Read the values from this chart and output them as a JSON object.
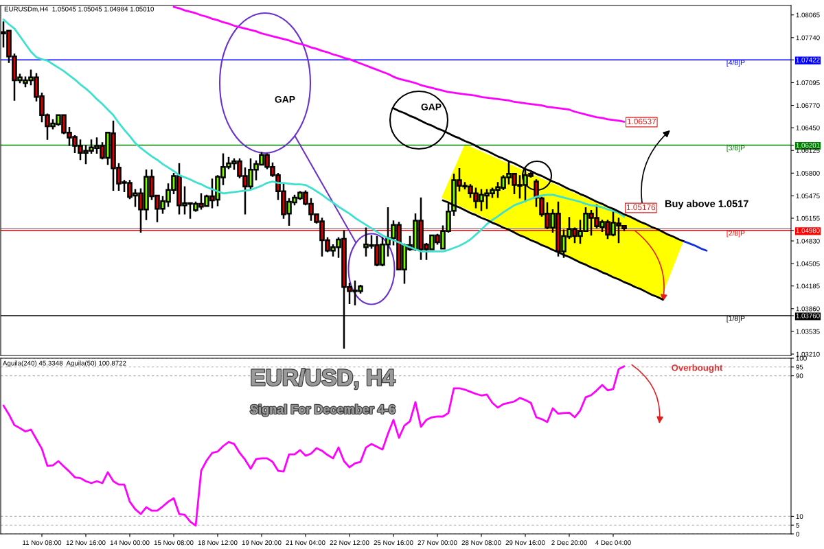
{
  "chart_data": [
    {
      "type": "candlestick",
      "categories": [
        null,
        null,
        null,
        null,
        null,
        null,
        null,
        null,
        null,
        null,
        null,
        null,
        null,
        null,
        null,
        null,
        null,
        null,
        null,
        null,
        null,
        null,
        null,
        null,
        null,
        null,
        null,
        null,
        null,
        null,
        null,
        null,
        null,
        null,
        null,
        null,
        null,
        null,
        null,
        null,
        null,
        null,
        null,
        null,
        null,
        null,
        null,
        null,
        null,
        null,
        null,
        null,
        null,
        null,
        null,
        null,
        null,
        null,
        null,
        null,
        null,
        null,
        null,
        null,
        null,
        null,
        null,
        null,
        null,
        null,
        null,
        null,
        null,
        null,
        null,
        null,
        null,
        null,
        null,
        null,
        null,
        null,
        null,
        null,
        null,
        null,
        null,
        null,
        null,
        null,
        null,
        null,
        null,
        null,
        null,
        null,
        null,
        null,
        null,
        null,
        null,
        null,
        null,
        null,
        null,
        null,
        null,
        null,
        null,
        null,
        null,
        null,
        null,
        null,
        null,
        null,
        null,
        null,
        null,
        null,
        null,
        null,
        null,
        null,
        null,
        null,
        null,
        null,
        null
      ],
      "ohlc": [
        [
          1.078,
          1.0796,
          1.0761,
          1.0782
        ],
        [
          1.0784,
          1.0784,
          1.0739,
          1.0747
        ],
        [
          1.0747,
          1.075,
          1.0685,
          1.0713
        ],
        [
          1.0713,
          1.0721,
          1.071,
          1.0717
        ],
        [
          1.0709,
          1.0717,
          1.0704,
          1.0713
        ],
        [
          1.0713,
          1.0727,
          1.0707,
          1.0717
        ],
        [
          1.0717,
          1.0722,
          1.0684,
          1.0689
        ],
        [
          1.069,
          1.0694,
          1.0654,
          1.0663
        ],
        [
          1.0663,
          1.0664,
          1.0629,
          1.0647
        ],
        [
          1.0647,
          1.0656,
          1.0644,
          1.0651
        ],
        [
          1.065,
          1.0663,
          1.0649,
          1.0663
        ],
        [
          1.0663,
          1.0663,
          1.0637,
          1.0638
        ],
        [
          1.0638,
          1.0645,
          1.062,
          1.0631
        ],
        [
          1.0632,
          1.0633,
          1.061,
          1.0619
        ],
        [
          1.0619,
          1.0627,
          1.06,
          1.0609
        ],
        [
          1.0609,
          1.0619,
          1.0594,
          1.0612
        ],
        [
          1.0612,
          1.0627,
          1.0609,
          1.0617
        ],
        [
          1.0616,
          1.063,
          1.0609,
          1.0619
        ],
        [
          1.0619,
          1.0623,
          1.0601,
          1.0602
        ],
        [
          1.0602,
          1.0638,
          1.0593,
          1.0638
        ],
        [
          1.0637,
          1.0654,
          1.0556,
          1.0587
        ],
        [
          1.0588,
          1.0593,
          1.0556,
          1.0565
        ],
        [
          1.0567,
          1.0569,
          1.0554,
          1.0566
        ],
        [
          1.0566,
          1.0569,
          1.0544,
          1.0546
        ],
        [
          1.0548,
          1.0556,
          1.0533,
          1.0551
        ],
        [
          1.0551,
          1.0557,
          1.0496,
          1.0528
        ],
        [
          1.0528,
          1.0584,
          1.0514,
          1.0575
        ],
        [
          1.0575,
          1.0584,
          1.0543,
          1.0547
        ],
        [
          1.0548,
          1.0548,
          1.0511,
          1.0529
        ],
        [
          1.0529,
          1.0546,
          1.0523,
          1.054
        ],
        [
          1.0539,
          1.0564,
          1.0533,
          1.0556
        ],
        [
          1.0556,
          1.0579,
          1.0551,
          1.0576
        ],
        [
          1.0576,
          1.0593,
          1.0522,
          1.0534
        ],
        [
          1.0534,
          1.056,
          1.0522,
          1.0537
        ],
        [
          1.0537,
          1.0537,
          1.0516,
          1.0536
        ],
        [
          1.0527,
          1.0538,
          1.0526,
          1.0536
        ],
        [
          1.0536,
          1.055,
          1.0529,
          1.0532
        ],
        [
          1.0533,
          1.0548,
          1.0533,
          1.0547
        ],
        [
          1.0547,
          1.0571,
          1.0531,
          1.0541
        ],
        [
          1.0542,
          1.0576,
          1.0534,
          1.0575
        ],
        [
          1.0574,
          1.0607,
          1.0564,
          1.0589
        ],
        [
          1.0589,
          1.0602,
          1.0587,
          1.0594
        ],
        [
          1.0594,
          1.06,
          1.0586,
          1.0597
        ],
        [
          1.0597,
          1.06,
          1.0574,
          1.0576
        ],
        [
          1.0576,
          1.0587,
          1.0522,
          1.0561
        ],
        [
          1.0561,
          1.06,
          1.0558,
          1.0585
        ],
        [
          1.0585,
          1.0597,
          1.0571,
          1.0593
        ],
        [
          1.0592,
          1.0609,
          1.0592,
          1.0606
        ],
        [
          1.0606,
          1.0607,
          1.0587,
          1.0589
        ],
        [
          1.0589,
          1.0594,
          1.0576,
          1.0577
        ],
        [
          1.0577,
          1.0579,
          1.0543,
          1.0554
        ],
        [
          1.0554,
          1.0564,
          1.0516,
          1.0521
        ],
        [
          1.0522,
          1.0543,
          1.0506,
          1.0539
        ],
        [
          1.0538,
          1.0548,
          1.0535,
          1.0545
        ],
        [
          1.0544,
          1.0553,
          1.0543,
          1.0552
        ],
        [
          1.0552,
          1.0554,
          1.0535,
          1.0536
        ],
        [
          1.0536,
          1.0543,
          1.0513,
          1.0521
        ],
        [
          1.0521,
          1.0521,
          1.0509,
          1.051
        ],
        [
          1.0511,
          1.0515,
          1.0462,
          1.0484
        ],
        [
          1.0484,
          1.0487,
          1.0468,
          1.0469
        ],
        [
          1.0469,
          1.0477,
          1.0462,
          1.0474
        ],
        [
          1.0474,
          1.0487,
          1.046,
          1.0485
        ],
        [
          1.0486,
          1.0497,
          1.033,
          1.0417
        ],
        [
          1.0417,
          1.0422,
          1.0394,
          1.0411
        ],
        [
          1.0411,
          1.0425,
          1.0392,
          1.0412
        ],
        [
          1.0411,
          1.0419,
          1.0409,
          1.0418
        ],
        [
          1.0474,
          1.0501,
          1.0462,
          1.0478
        ],
        [
          1.0477,
          1.049,
          1.0473,
          1.0476
        ],
        [
          1.0477,
          1.0489,
          1.0448,
          1.0449
        ],
        [
          1.0449,
          1.0487,
          1.0448,
          1.0478
        ],
        [
          1.0478,
          1.053,
          1.0462,
          1.0487
        ],
        [
          1.0487,
          1.0511,
          1.0478,
          1.0506
        ],
        [
          1.0506,
          1.0509,
          1.0442,
          1.0442
        ],
        [
          1.0442,
          1.0478,
          1.0423,
          1.0477
        ],
        [
          1.0477,
          1.0489,
          1.047,
          1.0471
        ],
        [
          1.0471,
          1.0521,
          1.047,
          1.0512
        ],
        [
          1.0512,
          1.0544,
          1.0457,
          1.0471
        ],
        [
          1.0478,
          1.0479,
          1.0457,
          1.0471
        ],
        [
          1.0471,
          1.0491,
          1.0471,
          1.0491
        ],
        [
          1.0491,
          1.0492,
          1.0479,
          1.0481
        ],
        [
          1.0472,
          1.0504,
          1.0472,
          1.0497
        ],
        [
          1.0497,
          1.0536,
          1.0496,
          1.0525
        ],
        [
          1.0526,
          1.0578,
          1.052,
          1.057
        ],
        [
          1.057,
          1.0586,
          1.0555,
          1.0562
        ],
        [
          1.0562,
          1.0566,
          1.0558,
          1.0561
        ],
        [
          1.0561,
          1.0563,
          1.0546,
          1.0551
        ],
        [
          1.0551,
          1.0558,
          1.0531,
          1.054
        ],
        [
          1.054,
          1.0556,
          1.0527,
          1.0549
        ],
        [
          1.0548,
          1.0556,
          1.053,
          1.0551
        ],
        [
          1.0551,
          1.0558,
          1.0546,
          1.0556
        ],
        [
          1.0556,
          1.0566,
          1.0546,
          1.056
        ],
        [
          1.0559,
          1.0576,
          1.0557,
          1.0574
        ],
        [
          1.0574,
          1.0595,
          1.0565,
          1.0579
        ],
        [
          1.0579,
          1.0579,
          1.0551,
          1.0563
        ],
        [
          1.0563,
          1.0576,
          1.0545,
          1.0562
        ],
        [
          1.0563,
          1.0585,
          1.054,
          1.0577
        ],
        [
          1.0579,
          1.058,
          1.0575,
          1.0576
        ],
        [
          1.0568,
          1.057,
          1.0533,
          1.0545
        ],
        [
          1.0544,
          1.0545,
          1.0519,
          1.0521
        ],
        [
          1.0522,
          1.0537,
          1.0501,
          1.0502
        ],
        [
          1.0502,
          1.0527,
          1.0496,
          1.0522
        ],
        [
          1.0522,
          1.0538,
          1.0462,
          1.0468
        ],
        [
          1.0468,
          1.0498,
          1.046,
          1.049
        ],
        [
          1.0489,
          1.0516,
          1.0487,
          1.05
        ],
        [
          1.05,
          1.0501,
          1.0481,
          1.049
        ],
        [
          1.049,
          1.0512,
          1.048,
          1.0497
        ],
        [
          1.0497,
          1.053,
          1.0497,
          1.0522
        ],
        [
          1.0522,
          1.0526,
          1.0492,
          1.0516
        ],
        [
          1.0516,
          1.0534,
          1.0502,
          1.0504
        ],
        [
          1.0503,
          1.0512,
          1.0497,
          1.051
        ],
        [
          1.051,
          1.0512,
          1.0487,
          1.0492
        ],
        [
          1.0492,
          1.0529,
          1.0491,
          1.0509
        ],
        [
          1.0508,
          1.0515,
          1.0481,
          1.0505
        ],
        [
          1.05045,
          1.05045,
          1.04984,
          1.0501
        ],
        null,
        null,
        null,
        null,
        null,
        null,
        null,
        null,
        null,
        null,
        null,
        null,
        null,
        null,
        null
      ],
      "series": [
        {
          "type": "line",
          "color": "#40e0d0",
          "values": [
            1.08,
            1.0793,
            1.0787,
            1.0776,
            1.0765,
            1.0754,
            1.0746,
            1.0743,
            1.0741,
            1.0736,
            1.0731,
            1.0726,
            1.072,
            1.0714,
            1.0707,
            1.0701,
            1.0694,
            1.0686,
            1.0679,
            1.0671,
            1.0663,
            1.0652,
            1.0642,
            1.0633,
            1.0623,
            1.0616,
            1.061,
            1.0604,
            1.0599,
            1.0593,
            1.0588,
            1.0583,
            1.0577,
            1.0574,
            1.0571,
            1.0567,
            1.0564,
            1.056,
            1.0557,
            1.0554,
            1.0551,
            1.0552,
            1.0553,
            1.0554,
            1.0555,
            1.0556,
            1.0559,
            1.0562,
            1.0566,
            1.0568,
            1.0566,
            1.0566,
            1.0565,
            1.0564,
            1.0564,
            1.0563,
            1.0559,
            1.0554,
            1.0549,
            1.0543,
            1.0538,
            1.0532,
            1.0527,
            1.0522,
            1.0516,
            1.0511,
            1.0506,
            1.0501,
            1.0496,
            1.0491,
            1.0487,
            1.0484,
            1.0481,
            1.0477,
            1.0474,
            1.0471,
            1.0468,
            1.0468,
            1.0468,
            1.0468,
            1.0468,
            1.047,
            1.0473,
            1.0476,
            1.048,
            1.0485,
            1.0492,
            1.0499,
            1.0507,
            1.0513,
            1.0518,
            1.0524,
            1.0529,
            1.0534,
            1.0537,
            1.054,
            1.0543,
            1.0546,
            1.0548,
            1.0549,
            1.0549,
            1.0547,
            1.0545,
            1.0543,
            1.0541,
            1.0539,
            1.0536,
            1.0534,
            1.0533,
            1.0531,
            1.0528,
            1.0526,
            1.0523,
            1.05176,
            null,
            null,
            null,
            null,
            null,
            null,
            null,
            null,
            null,
            null,
            null,
            null,
            null,
            null,
            null
          ]
        },
        {
          "type": "line",
          "color": "#ff00ff",
          "values": [
            null,
            null,
            null,
            null,
            null,
            null,
            null,
            null,
            null,
            null,
            null,
            null,
            null,
            null,
            null,
            null,
            null,
            null,
            null,
            null,
            null,
            null,
            null,
            null,
            null,
            null,
            null,
            null,
            null,
            null,
            null,
            1.0818,
            1.0816,
            1.0813,
            1.0811,
            1.0809,
            1.0806,
            1.0804,
            1.0801,
            1.0799,
            1.0796,
            1.0794,
            1.0791,
            1.0789,
            1.0787,
            1.0785,
            1.0783,
            1.078,
            1.0778,
            1.0776,
            1.0774,
            1.0772,
            1.077,
            1.0767,
            1.0765,
            1.0763,
            1.076,
            1.0758,
            1.0755,
            1.0753,
            1.075,
            1.0748,
            1.0745,
            1.0743,
            1.074,
            1.0737,
            1.0734,
            1.0731,
            1.0728,
            1.0725,
            1.0722,
            1.0718,
            1.0715,
            1.0713,
            1.0711,
            1.0709,
            1.0706,
            1.0704,
            1.0702,
            1.07,
            1.0698,
            1.0696,
            1.0695,
            1.0694,
            1.0693,
            1.0692,
            1.0691,
            1.0689,
            1.0688,
            1.0687,
            1.0686,
            1.0685,
            1.0684,
            1.0682,
            1.0681,
            1.068,
            1.0679,
            1.0678,
            1.0677,
            1.0675,
            1.0674,
            1.0673,
            1.0672,
            1.0671,
            1.0668,
            1.0666,
            1.0664,
            1.0662,
            1.066,
            1.0659,
            1.0657,
            1.0656,
            1.0655,
            1.06537,
            null,
            null,
            null,
            null,
            null,
            null,
            null,
            null,
            null,
            null,
            null,
            null,
            null,
            null,
            null
          ]
        },
        {
          "type": "line",
          "color": "#000000",
          "values": [
            null,
            null,
            null,
            null,
            null,
            null,
            null,
            null,
            null,
            null,
            null,
            null,
            null,
            null,
            null,
            null,
            null,
            null,
            null,
            null,
            null,
            null,
            null,
            null,
            null,
            null,
            null,
            null,
            null,
            null,
            null,
            null,
            null,
            null,
            null,
            null,
            null,
            null,
            null,
            null,
            null,
            null,
            null,
            null,
            null,
            null,
            null,
            null,
            null,
            null,
            null,
            null,
            null,
            null,
            null,
            null,
            null,
            null,
            null,
            null,
            null,
            null,
            null,
            null,
            null,
            null,
            null,
            null,
            null,
            null,
            null,
            1.0673,
            1.0669,
            1.0666,
            1.0662,
            1.0659,
            1.0655,
            1.0651,
            1.0648,
            1.0644,
            1.0641,
            1.0637,
            1.0633,
            1.063,
            1.0626,
            1.0623,
            1.0619,
            1.0615,
            1.0612,
            1.0608,
            1.0604,
            1.0601,
            1.0597,
            1.0594,
            1.059,
            1.0586,
            1.0583,
            1.0579,
            1.0576,
            1.0572,
            1.0568,
            1.0565,
            1.0561,
            1.0557,
            1.0554,
            1.055,
            1.0547,
            1.0543,
            1.0539,
            1.0536,
            1.0532,
            1.0529,
            1.0525,
            1.0521,
            1.0518,
            1.0514,
            1.051,
            1.0507,
            1.0503,
            1.05,
            1.0496,
            1.0492,
            1.0489,
            1.0485,
            1.0482,
            null,
            null,
            null,
            null
          ]
        },
        {
          "type": "line",
          "color": "#1030e0",
          "values": [
            null,
            null,
            null,
            null,
            null,
            null,
            null,
            null,
            null,
            null,
            null,
            null,
            null,
            null,
            null,
            null,
            null,
            null,
            null,
            null,
            null,
            null,
            null,
            null,
            null,
            null,
            null,
            null,
            null,
            null,
            null,
            null,
            null,
            null,
            null,
            null,
            null,
            null,
            null,
            null,
            null,
            null,
            null,
            null,
            null,
            null,
            null,
            null,
            null,
            null,
            null,
            null,
            null,
            null,
            null,
            null,
            null,
            null,
            null,
            null,
            null,
            null,
            null,
            null,
            null,
            null,
            null,
            null,
            null,
            null,
            null,
            null,
            null,
            null,
            null,
            null,
            null,
            null,
            null,
            null,
            null,
            null,
            null,
            null,
            null,
            null,
            null,
            null,
            null,
            null,
            null,
            null,
            null,
            null,
            null,
            null,
            null,
            null,
            null,
            null,
            null,
            null,
            null,
            null,
            null,
            null,
            null,
            null,
            null,
            null,
            null,
            null,
            null,
            null,
            null,
            null,
            null,
            null,
            null,
            null,
            null,
            null,
            null,
            null,
            1.0482,
            1.0479,
            1.0476,
            1.0472,
            1.0469
          ]
        },
        {
          "type": "line",
          "color": "#000000",
          "values": [
            null,
            null,
            null,
            null,
            null,
            null,
            null,
            null,
            null,
            null,
            null,
            null,
            null,
            null,
            null,
            null,
            null,
            null,
            null,
            null,
            null,
            null,
            null,
            null,
            null,
            null,
            null,
            null,
            null,
            null,
            null,
            null,
            null,
            null,
            null,
            null,
            null,
            null,
            null,
            null,
            null,
            null,
            null,
            null,
            null,
            null,
            null,
            null,
            null,
            null,
            null,
            null,
            null,
            null,
            null,
            null,
            null,
            null,
            null,
            null,
            null,
            null,
            null,
            null,
            null,
            null,
            null,
            null,
            null,
            null,
            null,
            null,
            null,
            null,
            null,
            null,
            null,
            null,
            null,
            null,
            1.0541,
            1.0538,
            1.0534,
            1.0531,
            1.0527,
            1.0523,
            1.052,
            1.0516,
            1.0513,
            1.0509,
            1.0506,
            1.0502,
            1.0499,
            1.0495,
            1.0491,
            1.0488,
            1.0484,
            1.0481,
            1.0477,
            1.0474,
            1.047,
            1.0467,
            1.0463,
            1.046,
            1.0456,
            1.0452,
            1.0449,
            1.0445,
            1.0442,
            1.0438,
            1.0435,
            1.0431,
            1.0428,
            1.0424,
            1.0421,
            1.0417,
            1.0414,
            1.041,
            1.0406,
            1.0403,
            1.0399,
            null,
            null,
            null,
            null,
            null,
            null,
            null,
            null
          ]
        }
      ],
      "ylim": [
        1.0319,
        1.082
      ],
      "yticks": [
        1.08065,
        {
          "value": 1.0774,
          "label": "1.07740"
        },
        1.07422,
        1.07095,
        {
          "value": 1.0677,
          "label": "1.06770"
        },
        {
          "value": 1.0645,
          "label": "1.06450"
        },
        1.06201,
        1.06125,
        {
          "value": 1.058,
          "label": "1.05800"
        },
        1.05475,
        1.05155,
        {
          "value": 1.0498,
          "label": "1.04980"
        },
        {
          "value": 1.0483,
          "label": "1.04830"
        },
        1.04505,
        1.04185,
        {
          "value": 1.0386,
          "label": "1.03860"
        },
        {
          "value": 1.0376,
          "label": "1.03760"
        },
        1.03535,
        {
          "value": 1.0321,
          "label": "1.03210"
        }
      ],
      "ref_lines": [
        {
          "axis": "y",
          "value": 1.07422,
          "label": "[4/8]P",
          "color": "#0000ff"
        },
        {
          "axis": "y",
          "value": 1.06201,
          "label": "[3/8]P",
          "color": "#008000"
        },
        {
          "axis": "y",
          "value": 1.0501,
          "color": "#9090a0"
        },
        {
          "axis": "y",
          "value": 1.0498,
          "label": "[2/8]P",
          "color": "#ff0000"
        },
        {
          "axis": "y",
          "value": 1.0376,
          "label": "[1/8]P",
          "color": "#000000"
        }
      ],
      "annotations": [
        "EURUSDm,H4  1.05045 1.05045 1.04984 1.05010",
        "GAP",
        "GAP",
        "Buy above 1.0517",
        "1.06537",
        "1.05176"
      ]
    },
    {
      "type": "line",
      "title": "EUR/USD, H4",
      "subtitle": "Signal For December 4-6",
      "categories": [
        null,
        null,
        null,
        null,
        null,
        null,
        null,
        "11 Nov 08:00",
        null,
        null,
        null,
        null,
        null,
        null,
        null,
        "12 Nov 16:00",
        null,
        null,
        null,
        null,
        null,
        null,
        null,
        "14 Nov 00:00",
        null,
        null,
        null,
        null,
        null,
        null,
        null,
        "15 Nov 08:00",
        null,
        null,
        null,
        null,
        null,
        null,
        null,
        "18 Nov 12:00",
        null,
        null,
        null,
        null,
        null,
        null,
        null,
        "19 Nov 20:00",
        null,
        null,
        null,
        null,
        null,
        null,
        null,
        "21 Nov 04:00",
        null,
        null,
        null,
        null,
        null,
        null,
        null,
        "22 Nov 12:00",
        null,
        null,
        null,
        null,
        null,
        null,
        null,
        "25 Nov 16:00",
        null,
        null,
        null,
        null,
        null,
        null,
        null,
        "27 Nov 00:00",
        null,
        null,
        null,
        null,
        null,
        null,
        null,
        "28 Nov 08:00",
        null,
        null,
        null,
        null,
        null,
        null,
        null,
        "29 Nov 16:00",
        null,
        null,
        null,
        null,
        null,
        null,
        null,
        "2 Dec 20:00",
        null,
        null,
        null,
        null,
        null,
        null,
        null,
        "4 Dec 04:00",
        null,
        null,
        null,
        null,
        null,
        null,
        null,
        null,
        null,
        null,
        null,
        null,
        null,
        null,
        null,
        null,
        null
      ],
      "series": [
        {
          "color": "#ff00ff",
          "values": [
            73.1,
            68.0,
            61.9,
            60.2,
            58.3,
            59.4,
            53.9,
            48.4,
            38.7,
            39.0,
            41.4,
            38.4,
            35.5,
            32.2,
            31.8,
            30.0,
            28.9,
            30.0,
            28.9,
            35.1,
            30.0,
            28.1,
            28.1,
            18.3,
            14.0,
            11.3,
            15.2,
            13.2,
            13.2,
            15.6,
            18.3,
            20.3,
            11.3,
            10.9,
            7.0,
            4.7,
            36.0,
            41.8,
            46.1,
            46.9,
            50.0,
            52.3,
            51.2,
            46.1,
            42.2,
            37.1,
            42.6,
            43.0,
            43.0,
            41.0,
            35.9,
            35.5,
            45.3,
            45.3,
            47.7,
            44.5,
            45.7,
            48.8,
            47.3,
            44.9,
            43.0,
            49.2,
            41.4,
            37.9,
            40.2,
            41.0,
            49.2,
            51.2,
            49.6,
            48.0,
            57.0,
            64.9,
            54.7,
            61.7,
            64.1,
            75.0,
            61.0,
            64.9,
            66.4,
            66.8,
            66.8,
            68.8,
            82.9,
            82.9,
            82.1,
            80.9,
            79.7,
            78.8,
            79.3,
            74.6,
            71.9,
            73.9,
            74.6,
            75.4,
            77.4,
            76.2,
            74.6,
            66.4,
            65.3,
            63.7,
            71.5,
            68.4,
            68.8,
            69.0,
            66.4,
            70.3,
            77.8,
            79.0,
            81.7,
            84.8,
            81.7,
            82.5,
            93.8,
            95.4,
            null,
            null,
            null,
            null,
            null,
            null,
            null,
            null,
            null,
            null,
            null,
            null,
            null,
            null,
            null
          ]
        }
      ],
      "ylim": [
        0,
        100
      ],
      "yticks": [
        0,
        5,
        10,
        90,
        95,
        100
      ],
      "grid": "y",
      "annotations": [
        "Aguila(240) 45.3348  Aguila(50) 100.8722",
        "Overbought"
      ]
    }
  ]
}
